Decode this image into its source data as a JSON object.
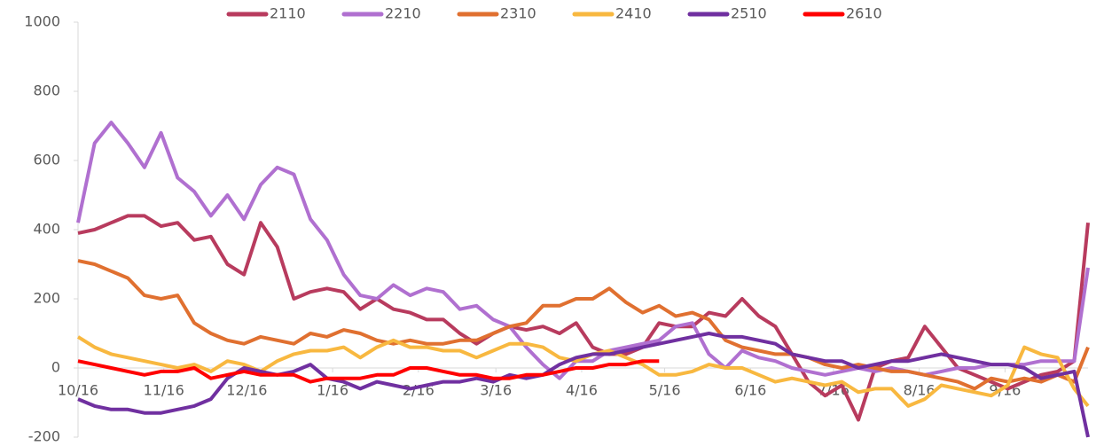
{
  "chart_data": {
    "type": "line",
    "x": [
      0,
      6,
      12,
      18,
      24,
      30,
      36,
      42,
      48,
      54,
      60,
      66,
      72,
      78,
      84,
      90,
      96,
      102,
      108,
      114,
      120,
      126,
      132,
      138,
      144,
      150,
      156,
      162,
      168,
      174,
      180,
      186,
      192,
      198,
      204,
      210,
      216,
      222,
      228,
      234,
      240,
      246,
      252,
      258,
      264,
      270,
      276,
      282,
      288,
      294,
      300,
      306,
      312,
      318,
      324,
      330,
      336,
      342,
      348,
      354,
      360,
      365
    ],
    "xlim": [
      0,
      365
    ],
    "xticks": [
      {
        "value": 0,
        "label": "10/16"
      },
      {
        "value": 31,
        "label": "11/16"
      },
      {
        "value": 61,
        "label": "12/16"
      },
      {
        "value": 92,
        "label": "1/16"
      },
      {
        "value": 123,
        "label": "2/16"
      },
      {
        "value": 151,
        "label": "3/16"
      },
      {
        "value": 182,
        "label": "4/16"
      },
      {
        "value": 212,
        "label": "5/16"
      },
      {
        "value": 243,
        "label": "6/16"
      },
      {
        "value": 273,
        "label": "7/16"
      },
      {
        "value": 304,
        "label": "8/16"
      },
      {
        "value": 335,
        "label": "9/16"
      }
    ],
    "ylim": [
      -200,
      1000
    ],
    "yticks": [
      -200,
      0,
      200,
      400,
      600,
      800,
      1000
    ],
    "series": [
      {
        "name": "2110",
        "color": "#b83b5e",
        "values": [
          390,
          400,
          420,
          440,
          440,
          410,
          420,
          370,
          380,
          300,
          270,
          420,
          350,
          200,
          220,
          230,
          220,
          170,
          200,
          170,
          160,
          140,
          140,
          100,
          70,
          100,
          120,
          110,
          120,
          100,
          130,
          60,
          40,
          40,
          60,
          130,
          120,
          120,
          160,
          150,
          200,
          150,
          120,
          40,
          -40,
          -80,
          -50,
          -150,
          0,
          20,
          30,
          120,
          60,
          0,
          -20,
          -40,
          -60,
          -40,
          -20,
          -10,
          20,
          420
        ]
      },
      {
        "name": "2210",
        "color": "#b070d0",
        "values": [
          420,
          650,
          710,
          650,
          580,
          680,
          550,
          510,
          440,
          500,
          430,
          530,
          580,
          560,
          430,
          370,
          270,
          210,
          200,
          240,
          210,
          230,
          220,
          170,
          180,
          140,
          120,
          60,
          10,
          -30,
          20,
          20,
          50,
          60,
          70,
          80,
          120,
          130,
          40,
          0,
          50,
          30,
          20,
          0,
          -10,
          -20,
          -10,
          0,
          -10,
          0,
          -10,
          -20,
          -10,
          0,
          0,
          10,
          10,
          10,
          20,
          20,
          20,
          290
        ]
      },
      {
        "name": "2310",
        "color": "#e07030",
        "values": [
          310,
          300,
          280,
          260,
          210,
          200,
          210,
          130,
          100,
          80,
          70,
          90,
          80,
          70,
          100,
          90,
          110,
          100,
          80,
          70,
          80,
          70,
          70,
          80,
          80,
          100,
          120,
          130,
          180,
          180,
          200,
          200,
          230,
          190,
          160,
          180,
          150,
          160,
          140,
          80,
          60,
          50,
          40,
          40,
          30,
          10,
          0,
          10,
          0,
          -10,
          -10,
          -20,
          -30,
          -40,
          -60,
          -30,
          -40,
          -30,
          -40,
          -20,
          -40,
          60
        ]
      },
      {
        "name": "2410",
        "color": "#f8b840",
        "values": [
          90,
          60,
          40,
          30,
          20,
          10,
          0,
          10,
          -10,
          20,
          10,
          -10,
          20,
          40,
          50,
          50,
          60,
          30,
          60,
          80,
          60,
          60,
          50,
          50,
          30,
          50,
          70,
          70,
          60,
          30,
          20,
          40,
          50,
          30,
          10,
          -20,
          -20,
          -10,
          10,
          0,
          0,
          -20,
          -40,
          -30,
          -40,
          -50,
          -40,
          -70,
          -60,
          -60,
          -110,
          -90,
          -50,
          -60,
          -70,
          -80,
          -50,
          60,
          40,
          30,
          -60,
          -110
        ]
      },
      {
        "name": "2510",
        "color": "#7030a0",
        "values": [
          -90,
          -110,
          -120,
          -120,
          -130,
          -130,
          -120,
          -110,
          -90,
          -30,
          0,
          -10,
          -20,
          -10,
          10,
          -30,
          -40,
          -60,
          -40,
          -50,
          -60,
          -50,
          -40,
          -40,
          -30,
          -40,
          -20,
          -30,
          -20,
          10,
          30,
          40,
          40,
          50,
          60,
          70,
          80,
          90,
          100,
          90,
          90,
          80,
          70,
          40,
          30,
          20,
          20,
          0,
          10,
          20,
          20,
          30,
          40,
          30,
          20,
          10,
          10,
          0,
          -30,
          -20,
          -10,
          -200
        ]
      },
      {
        "name": "2610",
        "color": "#ff0000",
        "values": [
          20,
          10,
          0,
          -10,
          -20,
          -10,
          -10,
          0,
          -30,
          -20,
          -10,
          -20,
          -20,
          -20,
          -40,
          -30,
          -30,
          -30,
          -20,
          -20,
          0,
          0,
          -10,
          -20,
          -20,
          -30,
          -30,
          -20,
          -20,
          -10,
          0,
          0,
          10,
          10,
          20,
          20,
          null,
          null,
          null,
          null,
          null,
          null,
          null,
          null,
          null,
          null,
          null,
          null,
          null,
          null,
          null,
          null,
          null,
          null,
          null,
          null,
          null,
          null,
          null,
          null,
          null,
          null
        ]
      }
    ]
  }
}
